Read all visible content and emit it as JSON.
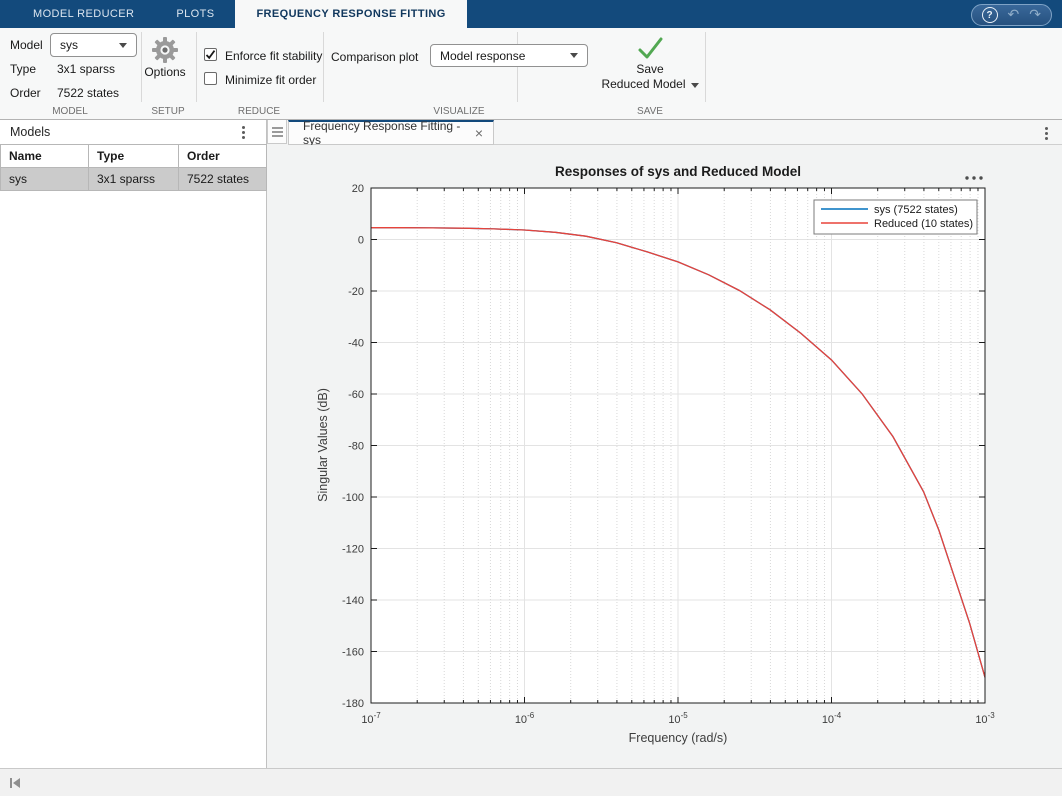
{
  "appbar": {
    "tabs": [
      {
        "label": "MODEL REDUCER",
        "active": false
      },
      {
        "label": "PLOTS",
        "active": false
      },
      {
        "label": "FREQUENCY RESPONSE FITTING",
        "active": true
      }
    ],
    "help_glyph": "?",
    "undo_glyph": "↶",
    "redo_glyph": "↷"
  },
  "toolbar": {
    "model": {
      "section_label": "MODEL",
      "model_label": "Model",
      "model_value": "sys",
      "type_label": "Type",
      "type_value": "3x1 sparss",
      "order_label": "Order",
      "order_value": "7522 states"
    },
    "setup": {
      "section_label": "SETUP",
      "options_label": "Options"
    },
    "reduce": {
      "section_label": "REDUCE",
      "enforce_label": "Enforce fit stability",
      "enforce_checked": true,
      "minimize_label": "Minimize fit order",
      "minimize_checked": false
    },
    "visualize": {
      "section_label": "VISUALIZE",
      "comparison_label": "Comparison plot",
      "comparison_value": "Model response"
    },
    "save": {
      "section_label": "SAVE",
      "line1": "Save",
      "line2": "Reduced Model"
    }
  },
  "models_panel": {
    "title": "Models",
    "columns": [
      "Name",
      "Type",
      "Order"
    ],
    "rows": [
      {
        "name": "sys",
        "type": "3x1 sparss",
        "order": "7522 states",
        "selected": true
      }
    ]
  },
  "document_tab": {
    "title": "Frequency Response Fitting - sys",
    "close_glyph": "×"
  },
  "chart_data": {
    "type": "line",
    "title": "Responses of sys and Reduced Model",
    "xlabel": "Frequency (rad/s)",
    "ylabel": "Singular Values (dB)",
    "xscale": "log10",
    "xlim_log10": [
      -7,
      -3
    ],
    "ylim": [
      -180,
      20
    ],
    "yticks": [
      20,
      0,
      -20,
      -40,
      -60,
      -80,
      -100,
      -120,
      -140,
      -160,
      -180
    ],
    "xtick_exponents": [
      -7,
      -6,
      -5,
      -4,
      -3
    ],
    "grid": true,
    "minor_grid": true,
    "legend_position": "northeast",
    "x_log10": [
      -7.0,
      -6.8,
      -6.6,
      -6.4,
      -6.2,
      -6.0,
      -5.8,
      -5.6,
      -5.4,
      -5.2,
      -5.0,
      -4.8,
      -4.6,
      -4.4,
      -4.2,
      -4.0,
      -3.8,
      -3.6,
      -3.4,
      -3.3,
      -3.2,
      -3.1,
      -3.0
    ],
    "series": [
      {
        "name": "sys (7522 states)",
        "color": "#0072BD",
        "db": [
          4.6,
          4.6,
          4.5,
          4.4,
          4.1,
          3.7,
          2.8,
          1.3,
          -1.3,
          -4.8,
          -8.7,
          -13.7,
          -19.8,
          -27.3,
          -36.4,
          -46.8,
          -60.0,
          -76.5,
          -98.0,
          -113.0,
          -131.0,
          -149.0,
          -170.0
        ]
      },
      {
        "name": "Reduced (10 states)",
        "color": "#E8433A",
        "db": [
          4.6,
          4.6,
          4.5,
          4.4,
          4.1,
          3.7,
          2.8,
          1.3,
          -1.3,
          -4.8,
          -8.7,
          -13.7,
          -19.8,
          -27.3,
          -36.4,
          -46.8,
          -60.0,
          -76.5,
          -98.0,
          -113.0,
          -131.0,
          -149.0,
          -170.0
        ]
      }
    ]
  },
  "colors": {
    "titlebar_blue": "#134a7c",
    "doc_tab_accent": "#134a7c",
    "selected_row_bg": "#cbcbcb",
    "series_blue": "#0072BD",
    "series_red": "#E8433A",
    "save_check_green": "#52A852"
  }
}
